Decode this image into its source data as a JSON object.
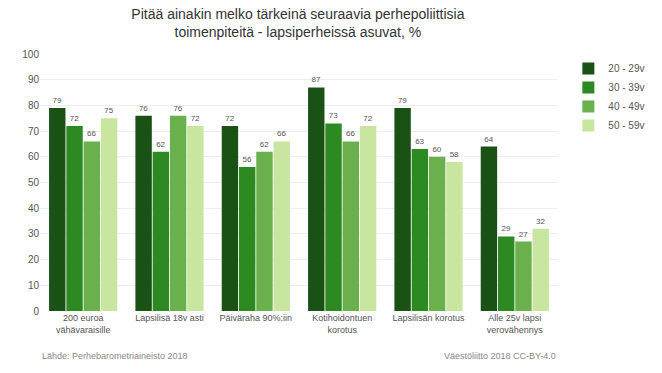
{
  "chart_data": {
    "type": "bar",
    "title": "Pitää ainakin melko tärkeinä seuraavia perhepoliittisia\ntoimenpiteitä - lapsiperheissä asuvat, %",
    "categories": [
      "200 euroa\nvähävaraisille",
      "Lapsilisä 18v asti",
      "Päiväraha 90%:iin",
      "Kotihoidontuen\nkorotus",
      "Lapsilisän korotus",
      "Alle 25v lapsi\nverovähennys"
    ],
    "series": [
      {
        "name": "20 - 29v",
        "color": "#1a5216",
        "values": [
          79,
          76,
          72,
          87,
          79,
          64
        ]
      },
      {
        "name": "30 - 39v",
        "color": "#2d8a22",
        "values": [
          72,
          62,
          56,
          73,
          63,
          29
        ]
      },
      {
        "name": "40 - 49v",
        "color": "#6ab04c",
        "values": [
          66,
          76,
          62,
          66,
          60,
          27
        ]
      },
      {
        "name": "50 - 59v",
        "color": "#c8e6a0",
        "values": [
          75,
          72,
          66,
          72,
          58,
          32
        ]
      }
    ],
    "ylim": [
      0,
      100
    ],
    "yticks": [
      0,
      10,
      20,
      30,
      40,
      50,
      60,
      70,
      80,
      90,
      100
    ],
    "grid": true,
    "legend": "right",
    "data_labels": true,
    "annotations": [
      "Lähde: Perhebarometriaineisto 2018",
      "Väestöliitto 2018 CC-BY-4.0"
    ]
  }
}
